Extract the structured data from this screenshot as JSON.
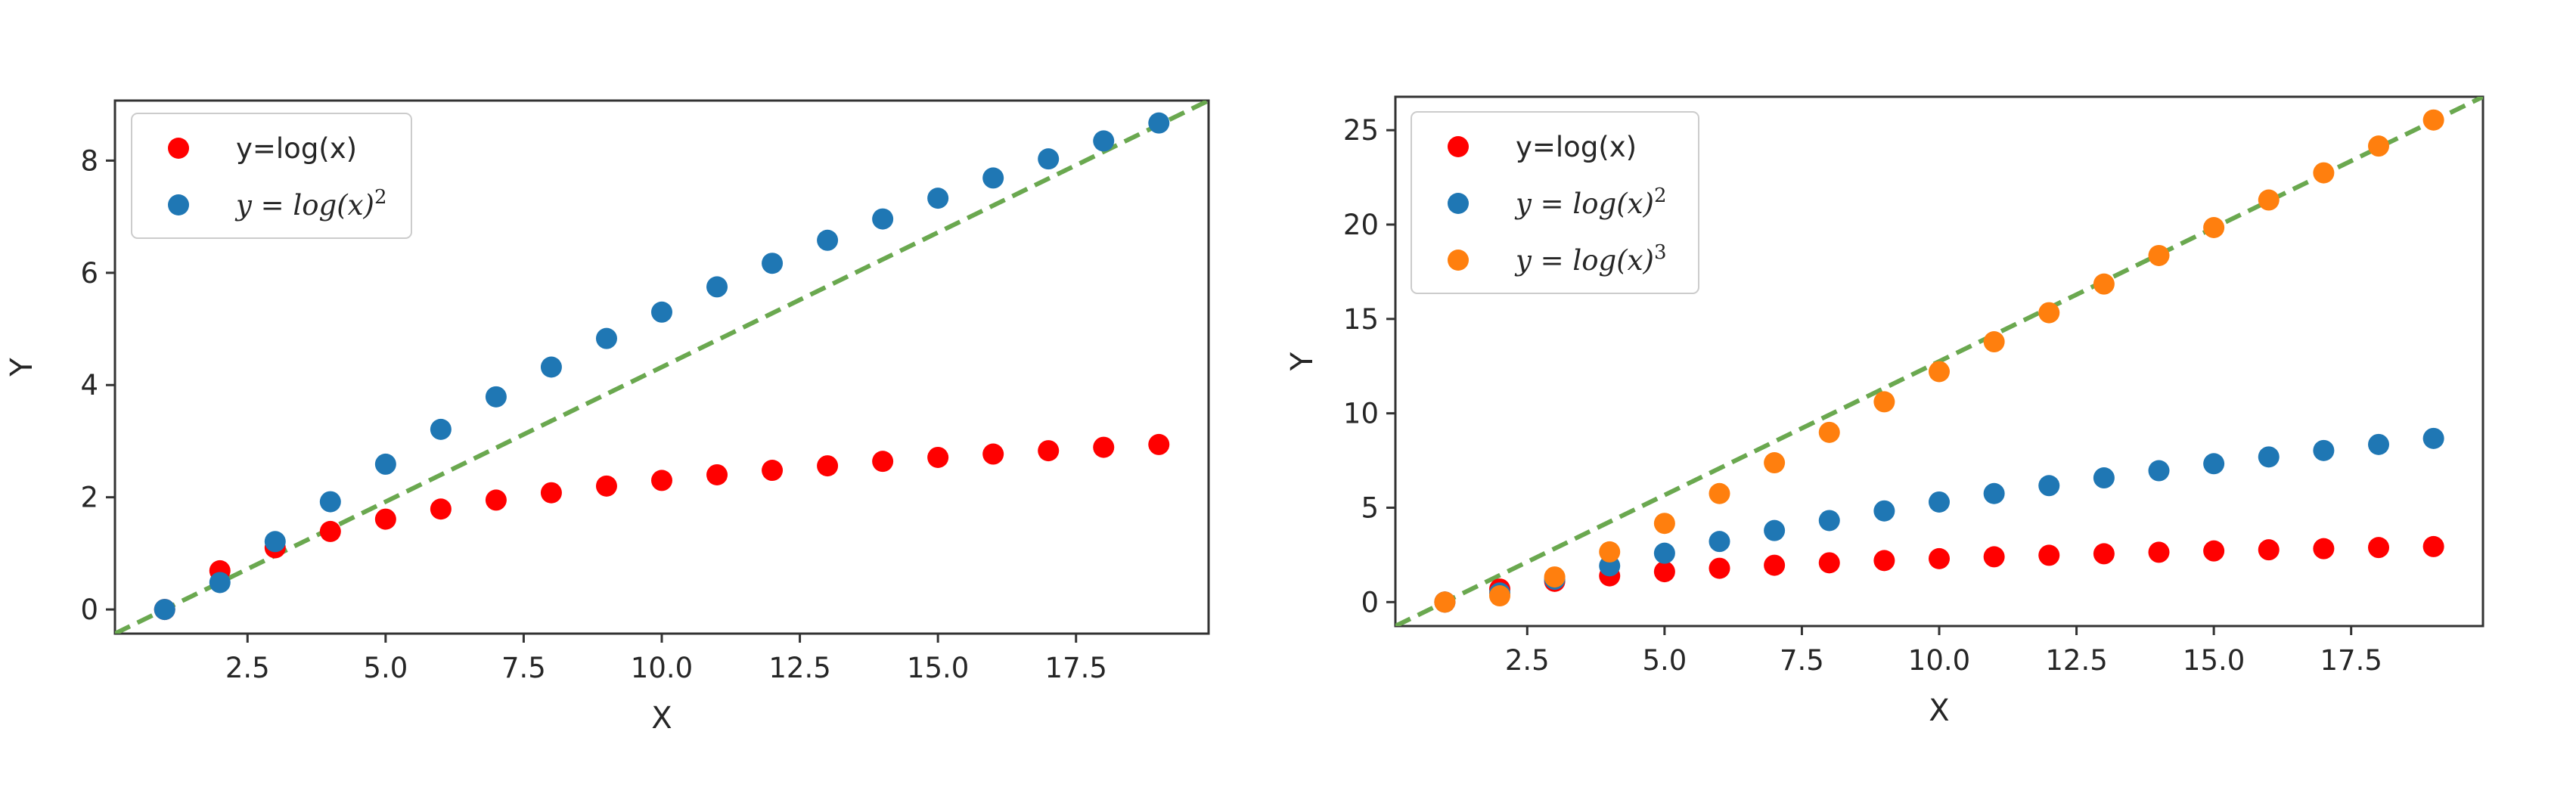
{
  "colors": {
    "red": "#ff0000",
    "blue": "#1f77b4",
    "orange": "#ff7f0e",
    "reference_line": "#6aa84f",
    "axes": "#333333",
    "legend_border": "#cccccc"
  },
  "chart_data": [
    {
      "type": "scatter",
      "xlabel": "X",
      "ylabel": "Y",
      "xlim": [
        0.1,
        19.9
      ],
      "ylim": [
        -0.43,
        9.07
      ],
      "x_ticks": [
        2.5,
        5.0,
        7.5,
        10.0,
        12.5,
        15.0,
        17.5
      ],
      "x_tick_labels": [
        "2.5",
        "5.0",
        "7.5",
        "10.0",
        "12.5",
        "15.0",
        "17.5"
      ],
      "y_ticks": [
        0,
        2,
        4,
        6,
        8
      ],
      "y_tick_labels": [
        "0",
        "2",
        "4",
        "6",
        "8"
      ],
      "legend_position": "top-left",
      "grid": false,
      "series": [
        {
          "name": "y=log(x)",
          "legend_label": "y=log(x)",
          "legend_style": "plain",
          "color": "#ff0000",
          "x": [
            1,
            2,
            3,
            4,
            5,
            6,
            7,
            8,
            9,
            10,
            11,
            12,
            13,
            14,
            15,
            16,
            17,
            18,
            19
          ],
          "y": [
            0.0,
            0.69,
            1.1,
            1.39,
            1.61,
            1.79,
            1.95,
            2.08,
            2.2,
            2.3,
            2.4,
            2.48,
            2.56,
            2.64,
            2.71,
            2.77,
            2.83,
            2.89,
            2.94
          ]
        },
        {
          "name": "y = log(x)^2",
          "legend_label": "y = log(x)",
          "legend_superscript": "2",
          "legend_style": "math",
          "color": "#1f77b4",
          "x": [
            1,
            2,
            3,
            4,
            5,
            6,
            7,
            8,
            9,
            10,
            11,
            12,
            13,
            14,
            15,
            16,
            17,
            18,
            19
          ],
          "y": [
            0.0,
            0.48,
            1.21,
            1.92,
            2.59,
            3.21,
            3.79,
            4.32,
            4.83,
            5.3,
            5.75,
            6.17,
            6.58,
            6.96,
            7.33,
            7.69,
            8.03,
            8.35,
            8.67
          ]
        }
      ],
      "reference_line": {
        "style": "dashed",
        "color": "#6aa84f",
        "x": [
          0.1,
          19.9
        ],
        "y": [
          -0.43,
          9.07
        ]
      }
    },
    {
      "type": "scatter",
      "xlabel": "X",
      "ylabel": "Y",
      "xlim": [
        0.1,
        19.9
      ],
      "ylim": [
        -1.27,
        26.77
      ],
      "x_ticks": [
        2.5,
        5.0,
        7.5,
        10.0,
        12.5,
        15.0,
        17.5
      ],
      "x_tick_labels": [
        "2.5",
        "5.0",
        "7.5",
        "10.0",
        "12.5",
        "15.0",
        "17.5"
      ],
      "y_ticks": [
        0,
        5,
        10,
        15,
        20,
        25
      ],
      "y_tick_labels": [
        "0",
        "5",
        "10",
        "15",
        "20",
        "25"
      ],
      "legend_position": "top-left",
      "grid": false,
      "series": [
        {
          "name": "y=log(x)",
          "legend_label": "y=log(x)",
          "legend_style": "plain",
          "color": "#ff0000",
          "x": [
            1,
            2,
            3,
            4,
            5,
            6,
            7,
            8,
            9,
            10,
            11,
            12,
            13,
            14,
            15,
            16,
            17,
            18,
            19
          ],
          "y": [
            0.0,
            0.69,
            1.1,
            1.39,
            1.61,
            1.79,
            1.95,
            2.08,
            2.2,
            2.3,
            2.4,
            2.48,
            2.56,
            2.64,
            2.71,
            2.77,
            2.83,
            2.89,
            2.94
          ]
        },
        {
          "name": "y = log(x)^2",
          "legend_label": "y = log(x)",
          "legend_superscript": "2",
          "legend_style": "math",
          "color": "#1f77b4",
          "x": [
            1,
            2,
            3,
            4,
            5,
            6,
            7,
            8,
            9,
            10,
            11,
            12,
            13,
            14,
            15,
            16,
            17,
            18,
            19
          ],
          "y": [
            0.0,
            0.48,
            1.21,
            1.92,
            2.59,
            3.21,
            3.79,
            4.32,
            4.83,
            5.3,
            5.75,
            6.17,
            6.58,
            6.96,
            7.33,
            7.69,
            8.03,
            8.35,
            8.67
          ]
        },
        {
          "name": "y = log(x)^3",
          "legend_label": "y = log(x)",
          "legend_superscript": "3",
          "legend_style": "math",
          "color": "#ff7f0e",
          "x": [
            1,
            2,
            3,
            4,
            5,
            6,
            7,
            8,
            9,
            10,
            11,
            12,
            13,
            14,
            15,
            16,
            17,
            18,
            19
          ],
          "y": [
            0.0,
            0.33,
            1.33,
            2.66,
            4.17,
            5.75,
            7.38,
            8.99,
            10.61,
            12.21,
            13.79,
            15.33,
            16.85,
            18.36,
            19.84,
            21.3,
            22.74,
            24.16,
            25.54
          ]
        }
      ],
      "reference_line": {
        "style": "dashed",
        "color": "#6aa84f",
        "x": [
          0.1,
          19.9
        ],
        "y": [
          -1.27,
          26.77
        ]
      }
    }
  ]
}
